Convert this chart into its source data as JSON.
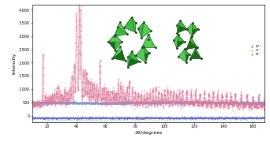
{
  "title": "",
  "xlabel": "2θ/degrees",
  "ylabel": "Intensity",
  "xlim": [
    10,
    168
  ],
  "ylim": [
    -250,
    4200
  ],
  "yticks": [
    0,
    500,
    1000,
    1500,
    2000,
    2500,
    3000,
    3500,
    4000
  ],
  "ytick_labels": [
    "0",
    "500",
    "1,000",
    "1,500",
    "2,000",
    "2,500",
    "3,000",
    "3,500",
    "4,000"
  ],
  "xticks": [
    20,
    40,
    60,
    80,
    100,
    120,
    140,
    160
  ],
  "background_color": "#ffffff",
  "observed_color": "#e07898",
  "calculated_color": "#e07898",
  "difference_color": "#4455cc",
  "background_line_color": "#6688cc",
  "bragg_color": "#444444",
  "legend_labels": [
    "Si⁴⁺",
    "O²⁻",
    "N³⁻"
  ],
  "legend_colors": [
    "#cc2233",
    "#bbbb33",
    "#33bb33"
  ],
  "seed": 42
}
